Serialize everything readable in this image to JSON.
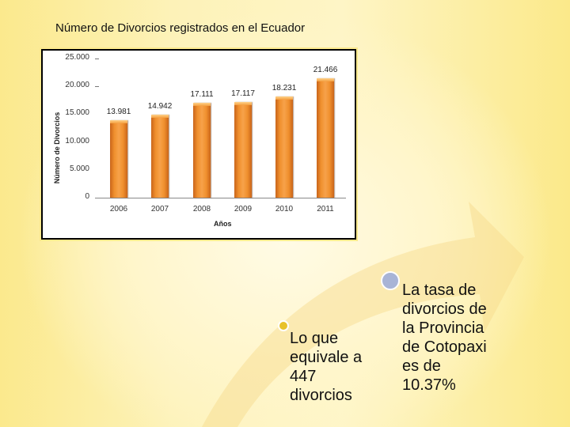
{
  "slide": {
    "title": "Número de Divorcios registrados en el Ecuador"
  },
  "chart_data": {
    "type": "bar",
    "title": "Número de Divorcios registrados en el Ecuador",
    "categories": [
      "2006",
      "2007",
      "2008",
      "2009",
      "2010",
      "2011"
    ],
    "values": [
      13981,
      14942,
      17111,
      17117,
      18231,
      21466
    ],
    "value_labels": [
      "13.981",
      "14.942",
      "17.111",
      "17.117",
      "18.231",
      "21.466"
    ],
    "xlabel": "Años",
    "ylabel": "Número de Divorcios",
    "ylim": [
      0,
      25000
    ],
    "yticks": [
      0,
      5000,
      10000,
      15000,
      20000,
      25000
    ],
    "ytick_labels": [
      "0",
      "5.000",
      "10.000",
      "15.000",
      "20.000",
      "25.000"
    ],
    "grid": false,
    "legend": "none",
    "bar_color": "#f0902e"
  },
  "bullets": [
    {
      "lines": [
        "Lo que",
        "equivale a",
        "447",
        "divorcios"
      ],
      "dot_color": "#e8c22a"
    },
    {
      "lines": [
        "La tasa de",
        "divorcios de",
        "la Provincia",
        "de Cotopaxi",
        "es de",
        "10.37%"
      ],
      "dot_color": "#a8b4d6"
    }
  ]
}
